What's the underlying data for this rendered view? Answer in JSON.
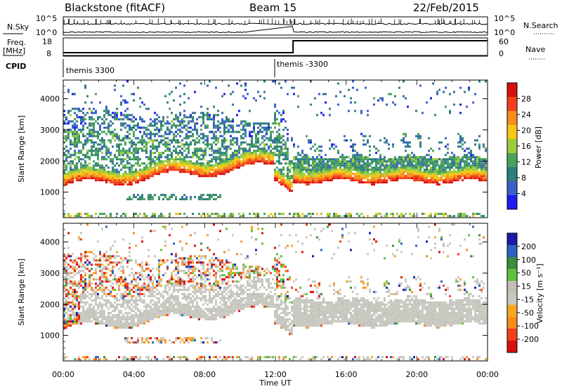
{
  "header": {
    "station": "Blackstone (fitACF)",
    "beam": "Beam 15",
    "date": "22/Feb/2015"
  },
  "top_panels": {
    "nsky_label": "N.Sky",
    "nsky_ticks": [
      "10^5",
      "10^0"
    ],
    "nsearch_label": "N.Search",
    "nsearch_ticks": [
      "10^5",
      "10^0"
    ],
    "freq_label": "Freq.",
    "freq_unit": "[MHz]",
    "freq_ticks": [
      "18",
      "8"
    ],
    "nave_label": "Nave",
    "nave_ticks": [
      "60",
      "0"
    ],
    "cpid_label": "CPID",
    "cpid_segments": [
      "themis 3300",
      "themis -3300"
    ]
  },
  "colors": {
    "power": [
      "#1c1cf0",
      "#3a60c8",
      "#2e7f7a",
      "#4aa35a",
      "#9ccc3c",
      "#f7c613",
      "#f78d1a",
      "#f3401a",
      "#d80f0f"
    ],
    "velocity": [
      "#d80f0f",
      "#f3401a",
      "#f78d1a",
      "#f7a823",
      "#c8c8c0",
      "#c0c0b8",
      "#5ec13a",
      "#3d8d3d",
      "#2d62c3",
      "#1a1aa8"
    ]
  },
  "chart_data": [
    {
      "type": "heatmap",
      "name": "power",
      "ylabel": "Slant Range [km]",
      "xlabel": "Time UT",
      "xticks": [
        "00:00",
        "04:00",
        "08:00",
        "12:00",
        "16:00",
        "20:00",
        "00:00"
      ],
      "yticks": [
        "1000",
        "2000",
        "3000",
        "4000"
      ],
      "ylim": [
        180,
        4600
      ],
      "xlim_hours": [
        0,
        24
      ],
      "colorbar_label": "Power [dB]",
      "colorbar_ticks": [
        "28",
        "24",
        "20",
        "16",
        "12",
        "8",
        "4"
      ],
      "vlim": [
        0,
        30
      ]
    },
    {
      "type": "heatmap",
      "name": "velocity",
      "ylabel": "Slant Range [km]",
      "xlabel": "Time UT",
      "xticks": [
        "00:00",
        "04:00",
        "08:00",
        "12:00",
        "16:00",
        "20:00",
        "00:00"
      ],
      "yticks": [
        "1000",
        "2000",
        "3000",
        "4000"
      ],
      "ylim": [
        180,
        4600
      ],
      "xlim_hours": [
        0,
        24
      ],
      "colorbar_label": "Velocity [m s⁻¹]",
      "colorbar_ticks": [
        "200",
        "100",
        "50",
        "15",
        "-15",
        "-50",
        "-100",
        "-200"
      ],
      "vlim": [
        -250,
        250
      ]
    }
  ]
}
